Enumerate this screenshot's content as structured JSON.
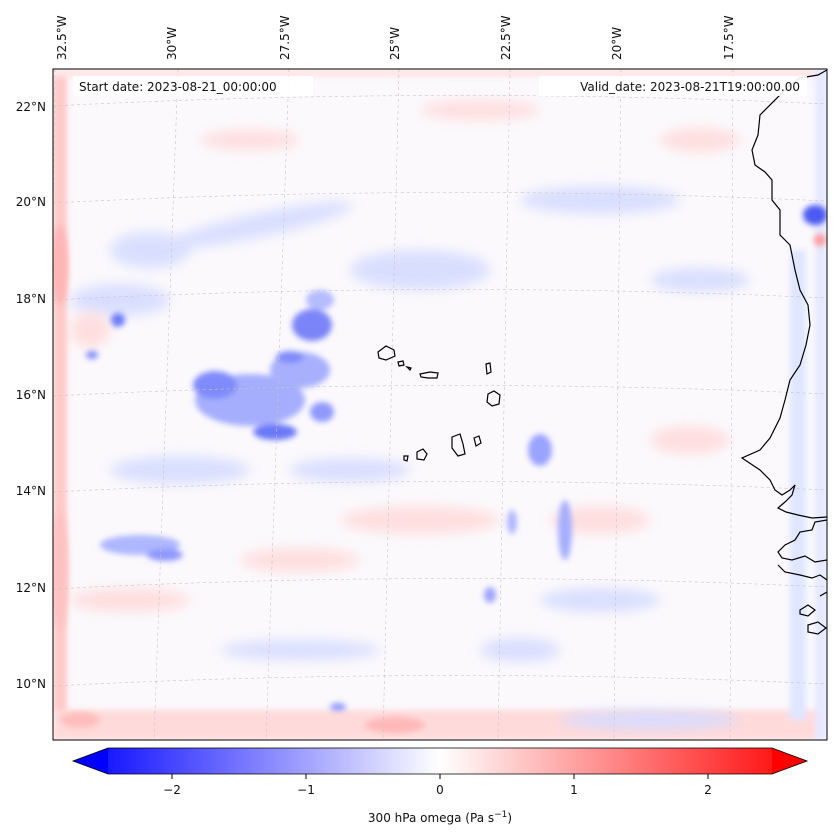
{
  "map": {
    "start_date_label": "Start date: 2023-08-21_00:00:00",
    "valid_date_label": "Valid_date: 2023-08-21T19:00:00.00",
    "lon_labels": [
      "32.5°W",
      "30°W",
      "27.5°W",
      "25°W",
      "22.5°W",
      "20°W",
      "17.5°W"
    ],
    "lat_labels": [
      "22°N",
      "20°N",
      "18°N",
      "16°N",
      "14°N",
      "12°N",
      "10°N"
    ],
    "extent": {
      "lon_min": -33.0,
      "lon_max": -15.0,
      "lat_min": 8.9,
      "lat_max": 22.8
    },
    "colormap": "bwr"
  },
  "colorbar": {
    "label": "300 hPa omega (Pa s",
    "label_sup": "−1",
    "label_close": ")",
    "ticks": [
      "−2",
      "−1",
      "0",
      "1",
      "2"
    ],
    "tick_values": [
      -2,
      -1,
      0,
      1,
      2
    ],
    "range": [
      -2.6,
      2.6
    ]
  },
  "features": {
    "islands": [
      "Cape Verde Islands"
    ],
    "coastline": "West Africa (Mauritania, Senegal, Gambia, Guinea-Bissau)"
  }
}
